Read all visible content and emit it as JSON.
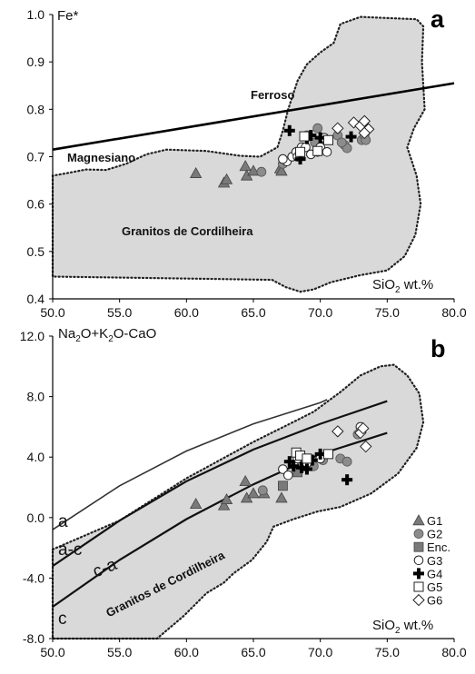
{
  "chart_data": [
    {
      "type": "scatter",
      "panel": "a",
      "ylabel": "Fe*",
      "xlabel": "SiO2 wt.%",
      "xlim": [
        50,
        80
      ],
      "ylim": [
        0.4,
        1.0
      ],
      "xticks": [
        "50.0",
        "55.0",
        "60.0",
        "65.0",
        "70.0",
        "75.0",
        "80.0"
      ],
      "yticks": [
        "0.4",
        "0.5",
        "0.6",
        "0.7",
        "0.8",
        "0.9",
        "1.0"
      ],
      "region_labels": [
        "Ferroso",
        "Magnesiano",
        "Granitos de Cordilheira"
      ],
      "boundary_line": [
        [
          50,
          0.715
        ],
        [
          80,
          0.855
        ]
      ],
      "field_outline": [
        [
          50,
          0.66
        ],
        [
          50,
          0.447
        ],
        [
          62,
          0.442
        ],
        [
          66.4,
          0.44
        ],
        [
          67.4,
          0.425
        ],
        [
          68.5,
          0.415
        ],
        [
          69.5,
          0.42
        ],
        [
          70.8,
          0.435
        ],
        [
          73,
          0.45
        ],
        [
          75,
          0.46
        ],
        [
          76.3,
          0.49
        ],
        [
          77.1,
          0.535
        ],
        [
          77.5,
          0.6
        ],
        [
          77.2,
          0.66
        ],
        [
          76.5,
          0.72
        ],
        [
          77,
          0.76
        ],
        [
          77.8,
          0.8
        ],
        [
          77.6,
          0.9
        ],
        [
          77.7,
          0.975
        ],
        [
          77.2,
          0.99
        ],
        [
          73,
          0.995
        ],
        [
          71.5,
          0.98
        ],
        [
          71,
          0.94
        ],
        [
          70,
          0.92
        ],
        [
          69,
          0.895
        ],
        [
          68.3,
          0.86
        ],
        [
          67.6,
          0.8
        ],
        [
          67.2,
          0.755
        ],
        [
          66.8,
          0.72
        ],
        [
          65.5,
          0.7
        ],
        [
          64,
          0.702
        ],
        [
          61.5,
          0.712
        ],
        [
          58.5,
          0.715
        ],
        [
          57,
          0.705
        ],
        [
          55.5,
          0.685
        ],
        [
          54,
          0.672
        ],
        [
          52.5,
          0.673
        ],
        [
          51,
          0.665
        ]
      ],
      "series": [
        {
          "name": "G1",
          "marker": "triangle",
          "points": [
            [
              60.7,
              0.665
            ],
            [
              62.8,
              0.645
            ],
            [
              63.0,
              0.652
            ],
            [
              64.4,
              0.68
            ],
            [
              64.5,
              0.66
            ],
            [
              65.0,
              0.67
            ],
            [
              67.0,
              0.675
            ],
            [
              67.1,
              0.67
            ]
          ]
        },
        {
          "name": "G2",
          "marker": "circle-gray",
          "points": [
            [
              65.6,
              0.668
            ],
            [
              67.2,
              0.685
            ],
            [
              68.5,
              0.7
            ],
            [
              69.0,
              0.745
            ],
            [
              69.8,
              0.76
            ],
            [
              69.6,
              0.73
            ],
            [
              70.3,
              0.738
            ],
            [
              71.3,
              0.745
            ],
            [
              71.8,
              0.725
            ],
            [
              72.0,
              0.718
            ],
            [
              71.6,
              0.73
            ],
            [
              73.1,
              0.735
            ],
            [
              73.3,
              0.745
            ],
            [
              73.4,
              0.735
            ]
          ]
        },
        {
          "name": "G3",
          "marker": "circle-open",
          "points": [
            [
              67.5,
              0.69
            ],
            [
              67.9,
              0.7
            ],
            [
              68.2,
              0.71
            ],
            [
              68.6,
              0.72
            ],
            [
              68.9,
              0.72
            ],
            [
              69.3,
              0.705
            ],
            [
              69.8,
              0.71
            ],
            [
              70.0,
              0.72
            ],
            [
              70.5,
              0.71
            ],
            [
              70.3,
              0.74
            ],
            [
              68.3,
              0.7
            ],
            [
              67.2,
              0.695
            ]
          ]
        },
        {
          "name": "G4",
          "marker": "cross",
          "points": [
            [
              67.7,
              0.755
            ],
            [
              68.5,
              0.695
            ],
            [
              69.0,
              0.738
            ],
            [
              69.3,
              0.745
            ],
            [
              70.0,
              0.74
            ],
            [
              72.3,
              0.742
            ]
          ]
        },
        {
          "name": "G5",
          "marker": "square-open",
          "points": [
            [
              68.5,
              0.71
            ],
            [
              68.8,
              0.743
            ],
            [
              69.8,
              0.712
            ],
            [
              70.6,
              0.735
            ]
          ]
        },
        {
          "name": "G6",
          "marker": "diamond-open",
          "points": [
            [
              71.3,
              0.76
            ],
            [
              72.5,
              0.772
            ],
            [
              73.0,
              0.765
            ],
            [
              73.3,
              0.775
            ],
            [
              73.6,
              0.758
            ],
            [
              73.3,
              0.75
            ]
          ]
        }
      ]
    },
    {
      "type": "scatter",
      "panel": "b",
      "ylabel": "Na2O+K2O-CaO",
      "xlabel": "SiO2 wt.%",
      "xlim": [
        50,
        80
      ],
      "ylim": [
        -8,
        12
      ],
      "xticks": [
        "50.0",
        "55.0",
        "60.0",
        "65.0",
        "70.0",
        "75.0",
        "80.0"
      ],
      "yticks": [
        "-8.0",
        "-4.0",
        "0.0",
        "4.0",
        "8.0",
        "12.0"
      ],
      "region_labels": [
        "Granitos de Cordilheira"
      ],
      "line_labels": [
        "a",
        "a-c",
        "c-a",
        "c"
      ],
      "curves": [
        {
          "label": "a",
          "points": [
            [
              50,
              -0.8
            ],
            [
              55,
              2.1
            ],
            [
              60,
              4.4
            ],
            [
              65,
              6.2
            ],
            [
              70,
              7.6
            ],
            [
              70.5,
              7.8
            ]
          ]
        },
        {
          "label": "a-c",
          "points": [
            [
              50,
              -3.2
            ],
            [
              55,
              -0.2
            ],
            [
              60,
              2.4
            ],
            [
              65,
              4.5
            ],
            [
              70,
              6.2
            ],
            [
              75,
              7.7
            ]
          ]
        },
        {
          "label": "c-a",
          "points": [
            [
              50,
              -5.9
            ],
            [
              55,
              -2.8
            ],
            [
              60,
              -0.1
            ],
            [
              65,
              2.2
            ],
            [
              70,
              4.2
            ],
            [
              75,
              5.6
            ]
          ]
        }
      ],
      "field_outline": [
        [
          50,
          -2.1
        ],
        [
          55,
          -0.2
        ],
        [
          60,
          2.6
        ],
        [
          65,
          5.0
        ],
        [
          67.5,
          6.1
        ],
        [
          69.5,
          7.0
        ],
        [
          71.5,
          8.3
        ],
        [
          73,
          9.4
        ],
        [
          74.5,
          10.0
        ],
        [
          75.5,
          10.1
        ],
        [
          76.5,
          9.4
        ],
        [
          77.4,
          8.2
        ],
        [
          77.7,
          6.3
        ],
        [
          77.2,
          4.6
        ],
        [
          75.8,
          2.9
        ],
        [
          73.8,
          1.6
        ],
        [
          71.5,
          0.7
        ],
        [
          69.8,
          0.4
        ],
        [
          68,
          -0.1
        ],
        [
          66.5,
          -0.6
        ],
        [
          66,
          -1.6
        ],
        [
          64.9,
          -2.8
        ],
        [
          63.5,
          -3.7
        ],
        [
          62.8,
          -4.3
        ],
        [
          61.5,
          -5.0
        ],
        [
          59.8,
          -6.5
        ],
        [
          57.8,
          -8.0
        ],
        [
          50,
          -8.0
        ]
      ],
      "legend": [
        "G1",
        "G2",
        "Enc.",
        "G3",
        "G4",
        "G5",
        "G6"
      ],
      "series": [
        {
          "name": "G1",
          "marker": "triangle",
          "points": [
            [
              60.7,
              0.9
            ],
            [
              62.8,
              0.8
            ],
            [
              63.0,
              1.2
            ],
            [
              64.4,
              2.4
            ],
            [
              64.5,
              1.3
            ],
            [
              65.0,
              1.6
            ],
            [
              67.1,
              1.3
            ],
            [
              65.8,
              1.6
            ]
          ]
        },
        {
          "name": "G2",
          "marker": "circle-gray",
          "points": [
            [
              65.7,
              1.8
            ],
            [
              68.2,
              3.6
            ],
            [
              69.0,
              3.7
            ],
            [
              69.5,
              3.4
            ],
            [
              70.2,
              3.8
            ],
            [
              71.5,
              3.9
            ],
            [
              72.0,
              3.7
            ],
            [
              72.8,
              5.5
            ],
            [
              73.1,
              5.8
            ]
          ]
        },
        {
          "name": "Enc.",
          "marker": "square-gray",
          "points": [
            [
              67.2,
              2.1
            ],
            [
              68.3,
              3.0
            ]
          ]
        },
        {
          "name": "G3",
          "marker": "circle-open",
          "points": [
            [
              67.2,
              3.2
            ],
            [
              67.6,
              2.8
            ],
            [
              68.0,
              3.5
            ],
            [
              68.3,
              3.9
            ],
            [
              69.0,
              3.6
            ],
            [
              70.0,
              3.9
            ],
            [
              73.0,
              6.0
            ]
          ]
        },
        {
          "name": "G4",
          "marker": "cross",
          "points": [
            [
              67.7,
              3.7
            ],
            [
              68.0,
              3.4
            ],
            [
              68.6,
              3.3
            ],
            [
              69.0,
              3.2
            ],
            [
              69.4,
              3.8
            ],
            [
              70.0,
              4.2
            ],
            [
              72.0,
              2.5
            ]
          ]
        },
        {
          "name": "G5",
          "marker": "square-open",
          "points": [
            [
              68.2,
              4.3
            ],
            [
              68.5,
              4.1
            ],
            [
              69.0,
              3.9
            ],
            [
              70.6,
              4.2
            ]
          ]
        },
        {
          "name": "G6",
          "marker": "diamond-open",
          "points": [
            [
              71.3,
              5.7
            ],
            [
              73.0,
              5.6
            ],
            [
              73.2,
              5.9
            ],
            [
              73.4,
              4.7
            ]
          ]
        }
      ]
    }
  ]
}
